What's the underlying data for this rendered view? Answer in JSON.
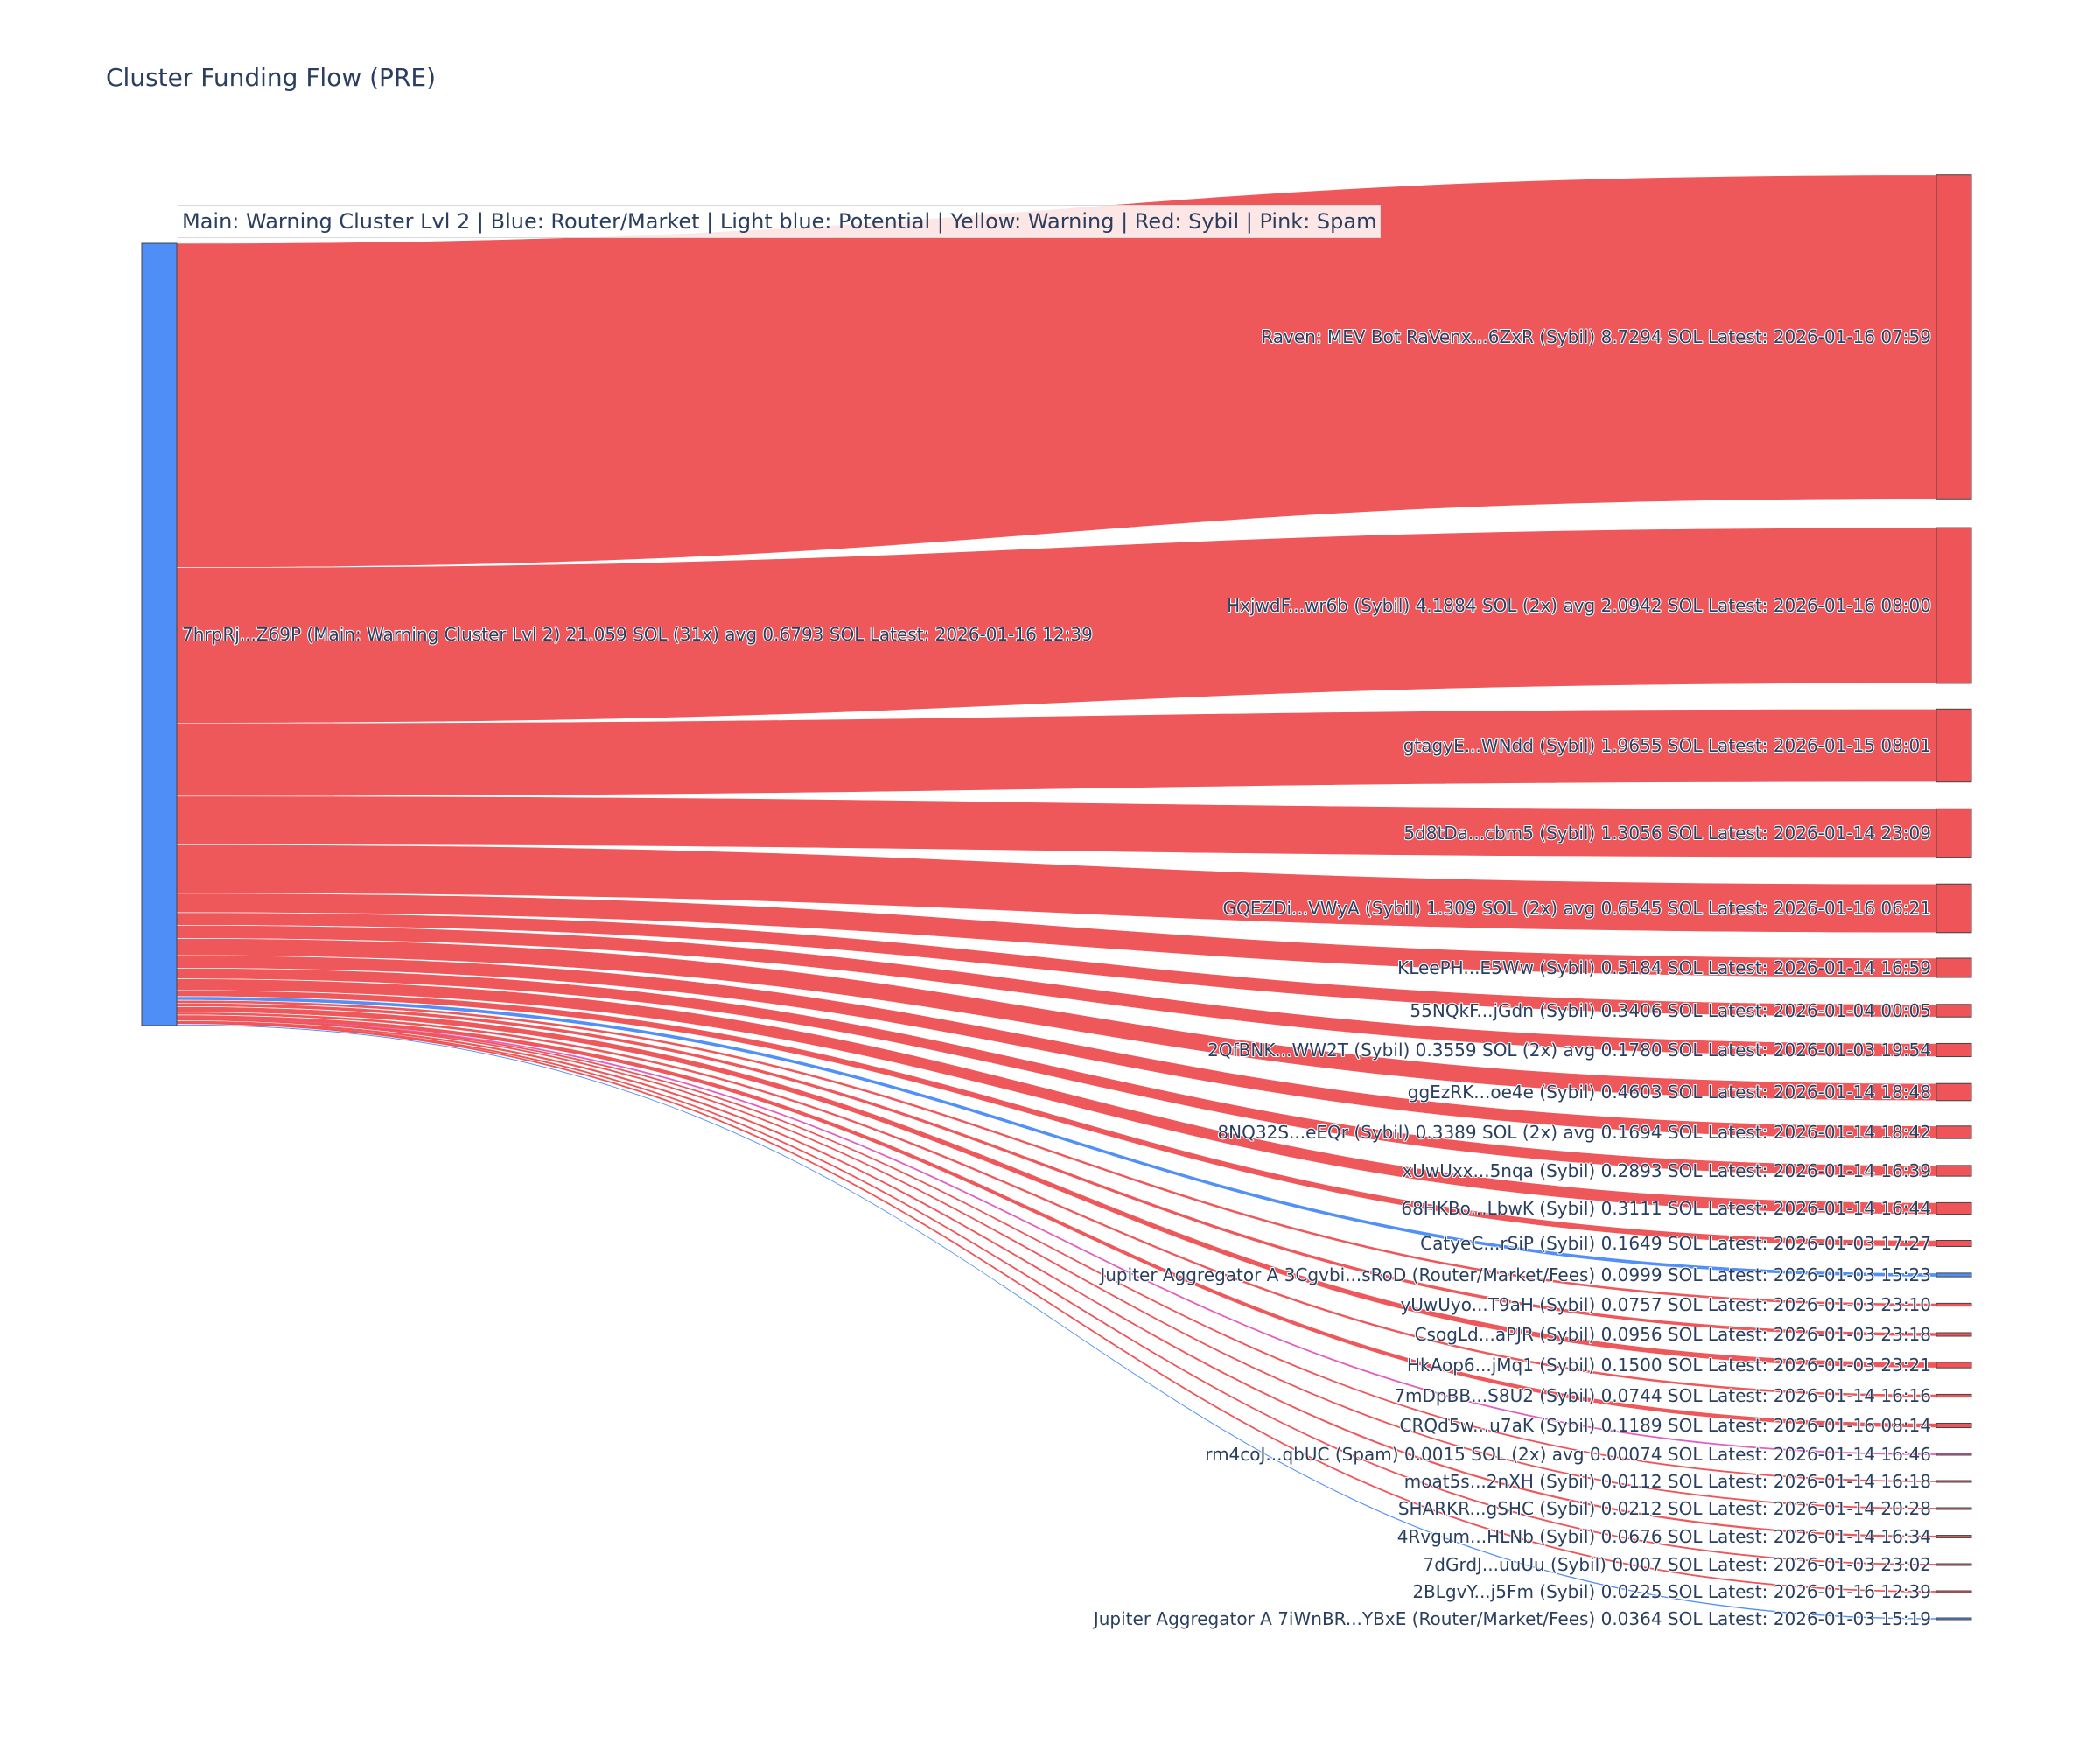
{
  "title": "Cluster Funding Flow (PRE)",
  "legend_text": "Main: Warning Cluster Lvl 2  |  Blue: Router/Market | Light blue: Potential | Yellow: Warning | Red: Sybil | Pink: Spam",
  "colors": {
    "source_node": "#4f8ef7",
    "sybil": "#ef5558",
    "router": "#4f8ef7",
    "spam": "#e25fc0"
  },
  "chart_data": {
    "type": "sankey",
    "source": {
      "label": "7hrpRj...Z69P (Main: Warning Cluster Lvl 2) 21.059 SOL (31x) avg 0.6793 SOL Latest: 2026-01-16 12:39",
      "total": 21.059
    },
    "targets": [
      {
        "label": "Raven: MEV Bot RaVenx...6ZxR (Sybil) 8.7294 SOL Latest: 2026-01-16 07:59",
        "value": 8.7294,
        "category": "sybil"
      },
      {
        "label": "HxjwdF...wr6b (Sybil) 4.1884 SOL (2x) avg 2.0942 SOL Latest: 2026-01-16 08:00",
        "value": 4.1884,
        "category": "sybil"
      },
      {
        "label": "gtagyE...WNdd (Sybil) 1.9655 SOL Latest: 2026-01-15 08:01",
        "value": 1.9655,
        "category": "sybil"
      },
      {
        "label": "5d8tDa...cbm5 (Sybil) 1.3056 SOL Latest: 2026-01-14 23:09",
        "value": 1.3056,
        "category": "sybil"
      },
      {
        "label": "GQEZDi...VWyA (Sybil) 1.309 SOL (2x) avg 0.6545 SOL Latest: 2026-01-16 06:21",
        "value": 1.309,
        "category": "sybil"
      },
      {
        "label": "KLeePH...E5Ww (Sybil) 0.5184 SOL Latest: 2026-01-14 16:59",
        "value": 0.5184,
        "category": "sybil"
      },
      {
        "label": "55NQkF...jGdn (Sybil) 0.3406 SOL Latest: 2026-01-04 00:05",
        "value": 0.3406,
        "category": "sybil"
      },
      {
        "label": "2QfBNK...WW2T (Sybil) 0.3559 SOL (2x) avg 0.1780 SOL Latest: 2026-01-03 19:54",
        "value": 0.3559,
        "category": "sybil"
      },
      {
        "label": "ggEzRK...oe4e (Sybil) 0.4603 SOL Latest: 2026-01-14 18:48",
        "value": 0.4603,
        "category": "sybil"
      },
      {
        "label": "8NQ32S...eEQr (Sybil) 0.3389 SOL (2x) avg 0.1694 SOL Latest: 2026-01-14 18:42",
        "value": 0.3389,
        "category": "sybil"
      },
      {
        "label": "xUwUxx...5nqa (Sybil) 0.2893 SOL Latest: 2026-01-14 16:39",
        "value": 0.2893,
        "category": "sybil"
      },
      {
        "label": "68HKBo...LbwK (Sybil) 0.3111 SOL Latest: 2026-01-14 16:44",
        "value": 0.3111,
        "category": "sybil"
      },
      {
        "label": "CatyeC...rSiP (Sybil) 0.1649 SOL Latest: 2026-01-03 17:27",
        "value": 0.1649,
        "category": "sybil"
      },
      {
        "label": "Jupiter Aggregator A 3Cgvbi...sRoD (Router/Market/Fees) 0.0999 SOL Latest: 2026-01-03 15:23",
        "value": 0.0999,
        "category": "router"
      },
      {
        "label": "yUwUyo...T9aH (Sybil) 0.0757 SOL Latest: 2026-01-03 23:10",
        "value": 0.0757,
        "category": "sybil"
      },
      {
        "label": "CsogLd...aPJR (Sybil) 0.0956 SOL Latest: 2026-01-03 23:18",
        "value": 0.0956,
        "category": "sybil"
      },
      {
        "label": "HkAop6...jMq1 (Sybil) 0.1500 SOL Latest: 2026-01-03 23:21",
        "value": 0.15,
        "category": "sybil"
      },
      {
        "label": "7mDpBB...S8U2 (Sybil) 0.0744 SOL Latest: 2026-01-14 16:16",
        "value": 0.0744,
        "category": "sybil"
      },
      {
        "label": "CRQd5w...u7aK (Sybil) 0.1189 SOL Latest: 2026-01-16 08:14",
        "value": 0.1189,
        "category": "sybil"
      },
      {
        "label": "rm4coJ...qbUC (Spam) 0.0015 SOL (2x) avg 0.00074 SOL Latest: 2026-01-14 16:46",
        "value": 0.0015,
        "category": "spam"
      },
      {
        "label": "moat5s...2nXH (Sybil) 0.0112 SOL Latest: 2026-01-14 16:18",
        "value": 0.0112,
        "category": "sybil"
      },
      {
        "label": "SHARKR...gSHC (Sybil) 0.0212 SOL Latest: 2026-01-14 20:28",
        "value": 0.0212,
        "category": "sybil"
      },
      {
        "label": "4Rvgum...HLNb (Sybil) 0.0676 SOL Latest: 2026-01-14 16:34",
        "value": 0.0676,
        "category": "sybil"
      },
      {
        "label": "7dGrdJ...uuUu (Sybil) 0.007 SOL Latest: 2026-01-03 23:02",
        "value": 0.007,
        "category": "sybil"
      },
      {
        "label": "2BLgvY...j5Fm (Sybil) 0.0225 SOL Latest: 2026-01-16 12:39",
        "value": 0.0225,
        "category": "sybil"
      },
      {
        "label": "Jupiter Aggregator A 7iWnBR...YBxE (Router/Market/Fees) 0.0364 SOL Latest: 2026-01-03 15:19",
        "value": 0.0364,
        "category": "router"
      }
    ]
  }
}
